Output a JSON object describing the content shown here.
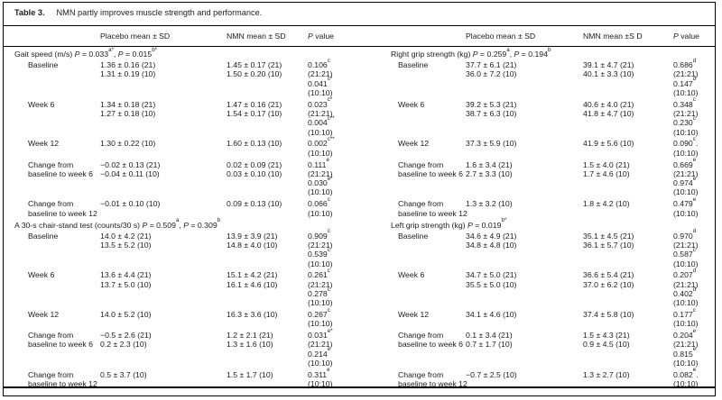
{
  "table": {
    "label": "Table 3.",
    "title": "NMN partly improves muscle strength and performance."
  },
  "columns": {
    "left": {
      "placebo": "Placebo mean ± SD",
      "nmn": "NMN mean ± SD",
      "p": "~P~ value"
    },
    "right": {
      "placebo": "Placebo mean ± SD",
      "nmn": "NMN mean ±S D",
      "p": "~P~ value"
    }
  },
  "panels": {
    "left": {
      "sections": [
        {
          "header": "Gait speed (m/s) ~P~ = 0.033^a*^, ~P~ = 0.015^b*^",
          "rows": [
            {
              "label": [
                "Baseline"
              ],
              "placebo": [
                "1.36 ± 0.16 (21)",
                "1.31 ± 0.19 (10)"
              ],
              "nmn": [
                "1.45 ± 0.17 (21)",
                "1.50 ± 0.20 (10)"
              ],
              "p": [
                "0.106^c^",
                "(21:21)",
                "0.041^c*^",
                "(10:10)"
              ]
            },
            {
              "label": [
                "Week 6"
              ],
              "placebo": [
                "1.34 ± 0.18 (21)",
                "1.27 ± 0.18 (10)"
              ],
              "nmn": [
                "1.47 ± 0.16 (21)",
                "1.54 ± 0.17 (10)"
              ],
              "p": [
                "0.023^c*^",
                "(21:21)",
                "0.004^c**^",
                "(10:10)"
              ]
            },
            {
              "label": [
                "Week 12"
              ],
              "placebo": [
                "1.30 ± 0.22 (10)"
              ],
              "nmn": [
                "1.60 ± 0.13 (10)"
              ],
              "p": [
                "0.002^c**^",
                "(10:10)"
              ]
            },
            {
              "label": [
                "Change from",
                "baseline to week 6"
              ],
              "placebo": [
                "−0.02 ± 0.13 (21)",
                "−0.04 ± 0.11 (10)"
              ],
              "nmn": [
                "0.02 ± 0.09 (21)",
                "0.03 ± 0.10 (10)"
              ],
              "p": [
                "0.111^e^",
                "(21:21)",
                "0.030^e*^",
                "(10:10)"
              ]
            },
            {
              "label": [
                "Change from",
                "baseline to week 12"
              ],
              "placebo": [
                "−0.01 ± 0.10 (10)"
              ],
              "nmn": [
                "0.09 ± 0.13 (10)"
              ],
              "p": [
                "0.066^c^",
                "(10:10)"
              ]
            }
          ]
        },
        {
          "header": "A 30-s chair-stand test (counts/30 s) ~P~ = 0.509^a^, ~P~ = 0.309^b^",
          "rows": [
            {
              "label": [
                "Baseline"
              ],
              "placebo": [
                "14.0 ± 4.2 (21)",
                "13.5 ± 5.2 (10)"
              ],
              "nmn": [
                "13.9 ± 3.9 (21)",
                "14.8 ± 4.0 (10)"
              ],
              "p": [
                "0.909^c^",
                "(21:21)",
                "0.539^c^",
                "(10:10)"
              ]
            },
            {
              "label": [
                "Week 6"
              ],
              "placebo": [
                "13.6 ± 4.4 (21)",
                "13.7 ± 5.0 (10)"
              ],
              "nmn": [
                "15.1 ± 4.2 (21)",
                "16.1 ± 4.6 (10)"
              ],
              "p": [
                "0.261^c^",
                "(21:21)",
                "0.278^c^",
                "(10:10)"
              ]
            },
            {
              "label": [
                "Week 12"
              ],
              "placebo": [
                "14.0 ± 5.2 (10)"
              ],
              "nmn": [
                "16.3 ± 3.6 (10)"
              ],
              "p": [
                "0.267^c^",
                "(10:10)"
              ]
            },
            {
              "label": [
                "Change from",
                "baseline to week 6"
              ],
              "placebo": [
                "−0.5 ± 2.6 (21)",
                "0.2 ± 2.3 (10)"
              ],
              "nmn": [
                "1.2 ± 2.1 (21)",
                "1.3 ± 1.6 (10)"
              ],
              "p": [
                "0.031^e*^",
                "(21:21)",
                "0.214^e^",
                "(10:10)"
              ]
            },
            {
              "label": [
                "Change from",
                "baseline to week 12"
              ],
              "placebo": [
                "0.5 ± 3.7 (10)"
              ],
              "nmn": [
                "1.5 ± 1.7 (10)"
              ],
              "p": [
                "0.311^e^",
                "(10:10)"
              ]
            }
          ]
        }
      ]
    },
    "right": {
      "sections": [
        {
          "header": "Right grip strength (kg) ~P~ = 0.259^a^, ~P~ = 0.194^b^",
          "rows": [
            {
              "label": [
                "Baseline"
              ],
              "placebo": [
                "37.7 ± 6.1 (21)",
                "36.0 ± 7.2 (10)"
              ],
              "nmn": [
                "39.1 ± 4.7 (21)",
                "40.1 ± 3.3 (10)"
              ],
              "p": [
                "0.686^d^",
                "(21:21)",
                "0.147^d^",
                "(10:10)"
              ]
            },
            {
              "label": [
                "Week 6"
              ],
              "placebo": [
                "39.2 ± 5.3 (21)",
                "38.7 ± 6.3 (10)"
              ],
              "nmn": [
                "40.6 ± 4.0 (21)",
                "41.8 ± 4.7 (10)"
              ],
              "p": [
                "0.348^c^",
                "(21:21)",
                "0.230^c^",
                "(10:10)"
              ]
            },
            {
              "label": [
                "Week 12"
              ],
              "placebo": [
                "37.3 ± 5.9 (10)"
              ],
              "nmn": [
                "41.9 ± 5.6 (10)"
              ],
              "p": [
                "0.090^c^.",
                "(10:10)"
              ]
            },
            {
              "label": [
                "Change from",
                "baseline to week 6"
              ],
              "placebo": [
                "1.6 ± 3.4 (21)",
                "2.7 ± 3.3 (10)"
              ],
              "nmn": [
                "1.5 ± 4.0 (21)",
                "1.7 ± 4.6 (10)"
              ],
              "p": [
                "0.669^e^",
                "(21:21)",
                "0.974^e^",
                "(10:10)"
              ]
            },
            {
              "label": [
                "Change from",
                "baseline to week 12"
              ],
              "placebo": [
                "1.3 ± 3.2 (10)"
              ],
              "nmn": [
                "1.8 ± 4.2 (10)"
              ],
              "p": [
                "0.479^e^",
                "(10:10)"
              ]
            }
          ]
        },
        {
          "header": "Left grip strength (kg) ~P~ = 0.019^b*^",
          "rows": [
            {
              "label": [
                "Baseline"
              ],
              "placebo": [
                "34.6 ± 4.9 (21)",
                "34.8 ± 4.8 (10)"
              ],
              "nmn": [
                "35.1 ± 4.5 (21)",
                "36.1 ± 5.7 (10)"
              ],
              "p": [
                "0.970^d^",
                "(21:21)",
                "0.587^c^",
                "(10:10)"
              ]
            },
            {
              "label": [
                "Week 6"
              ],
              "placebo": [
                "34.7 ± 5.0 (21)",
                "35.5 ± 5.0 (10)"
              ],
              "nmn": [
                "36.6 ± 5.4 (21)",
                "37.0 ± 6.2 (10)"
              ],
              "p": [
                "0.207^d^",
                "(21:21)",
                "0.402^d^",
                "(10:10)"
              ]
            },
            {
              "label": [
                "Week 12"
              ],
              "placebo": [
                "34.1 ± 4.6 (10)"
              ],
              "nmn": [
                "37.4 ± 5.8 (10)"
              ],
              "p": [
                "0.177^c^",
                "(10:10)"
              ]
            },
            {
              "label": [
                "Change from",
                "baseline to week 6"
              ],
              "placebo": [
                "0.1 ± 3.4 (21)",
                "0.7 ± 1.7 (10)"
              ],
              "nmn": [
                "1.5 ± 4.3 (21)",
                "0.9 ± 4.5 (10)"
              ],
              "p": [
                "0.204^e^",
                "(21:21)",
                "0.815^e^",
                "(10:10)"
              ]
            },
            {
              "label": [
                "Change from",
                "baseline to week 12"
              ],
              "placebo": [
                "−0.7 ± 2.5 (10)"
              ],
              "nmn": [
                "1.3 ± 2.7 (10)"
              ],
              "p": [
                "0.082^e^.",
                "(10:10)"
              ]
            }
          ]
        }
      ]
    }
  }
}
